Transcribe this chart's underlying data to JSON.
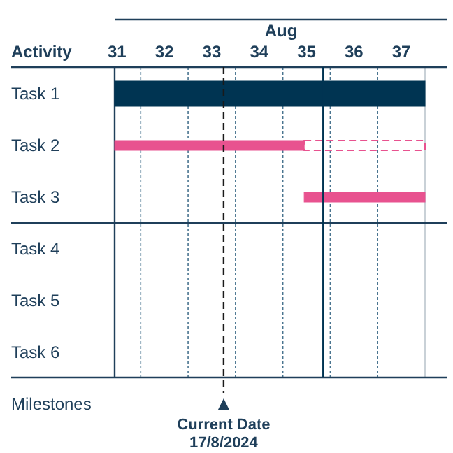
{
  "chart_data": {
    "type": "bar",
    "orientation": "horizontal",
    "ylabel": "Activity",
    "annotations": [
      "Aug"
    ],
    "categories": [
      "Task 1",
      "Task 2",
      "Task 3",
      "Task 4",
      "Task 5",
      "Task 6",
      "Milestones"
    ],
    "xlim": [
      30.95,
      37.5
    ],
    "xticks": [
      31,
      {
        "value": 31.5,
        "label": null
      },
      32,
      {
        "value": 32.5,
        "label": null
      },
      33,
      {
        "value": 33.5,
        "label": null
      },
      34,
      {
        "value": 34.5,
        "label": null
      },
      35,
      {
        "value": 35.5,
        "label": null
      },
      36,
      {
        "value": 36.5,
        "label": null
      },
      37
    ],
    "grid": true,
    "series": [
      {
        "color": "#003452",
        "base": [
          30.95,
          null,
          null,
          null,
          null,
          null,
          null
        ],
        "values": [
          6.55,
          null,
          null,
          null,
          null,
          null,
          null
        ]
      },
      {
        "color": "#e8528f",
        "base": [
          null,
          30.95,
          34.95,
          null,
          null,
          null,
          null
        ],
        "values": [
          null,
          4.0,
          2.55,
          null,
          null,
          null,
          null
        ]
      },
      {
        "color": "#e8528f",
        "line_style": "dashed",
        "base": [
          null,
          34.95,
          null,
          null,
          null,
          null,
          null
        ],
        "values": [
          null,
          2.55,
          null,
          null,
          null,
          null,
          null
        ]
      }
    ],
    "ref_lines": [
      {
        "axis": "x",
        "value": 33.25,
        "label": "Current Date 17/8/2024",
        "line_style": "dashed",
        "color": "#1a1a1a"
      },
      {
        "axis": "x",
        "value": 35.35,
        "label": null,
        "line_style": "solid",
        "color": "#003452"
      }
    ]
  }
}
